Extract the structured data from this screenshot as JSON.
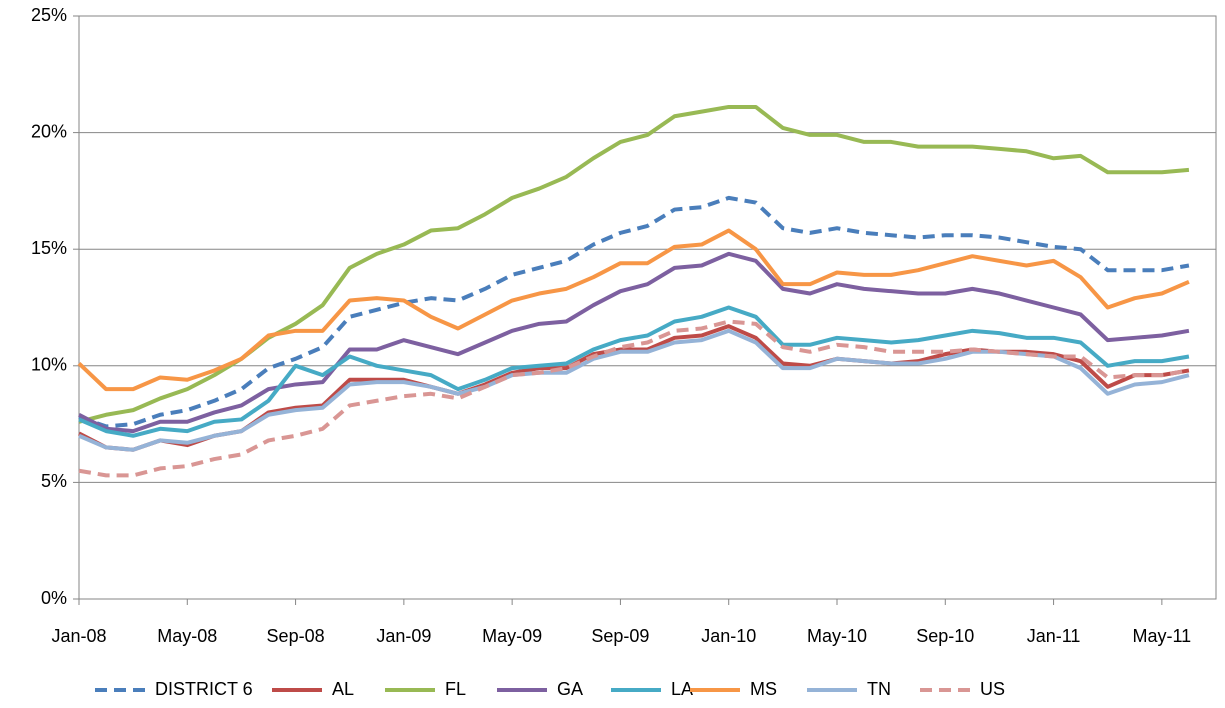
{
  "chart_data": {
    "type": "line",
    "categories": [
      "Jan-08",
      null,
      null,
      null,
      "May-08",
      null,
      null,
      null,
      "Sep-08",
      null,
      null,
      null,
      "Jan-09",
      null,
      null,
      null,
      "May-09",
      null,
      null,
      null,
      "Sep-09",
      null,
      null,
      null,
      "Jan-10",
      null,
      null,
      null,
      "May-10",
      null,
      null,
      null,
      "Sep-10",
      null,
      null,
      null,
      "Jan-11",
      null,
      null,
      null,
      "May-11",
      null
    ],
    "ylim": [
      0,
      25
    ],
    "yticks": [
      {
        "value": 0,
        "label": "0%"
      },
      {
        "value": 5,
        "label": "5%"
      },
      {
        "value": 10,
        "label": "10%"
      },
      {
        "value": 15,
        "label": "15%"
      },
      {
        "value": 20,
        "label": "20%"
      },
      {
        "value": 25,
        "label": "25%"
      }
    ],
    "grid": true,
    "legend": "bottom",
    "series": [
      {
        "name": "DISTRICT 6",
        "color": "#4a7ebb",
        "dashed": true,
        "values": [
          7.8,
          7.4,
          7.5,
          7.9,
          8.1,
          8.5,
          9.0,
          9.9,
          10.3,
          10.8,
          12.1,
          12.4,
          12.7,
          12.9,
          12.8,
          13.3,
          13.9,
          14.2,
          14.5,
          15.2,
          15.7,
          16.0,
          16.7,
          16.8,
          17.2,
          17.0,
          15.9,
          15.7,
          15.9,
          15.7,
          15.6,
          15.5,
          15.6,
          15.6,
          15.5,
          15.3,
          15.1,
          15.0,
          14.1,
          14.1,
          14.1,
          14.3
        ]
      },
      {
        "name": "AL",
        "color": "#be4b48",
        "dashed": false,
        "values": [
          7.1,
          6.5,
          6.4,
          6.8,
          6.6,
          7.0,
          7.2,
          8.0,
          8.2,
          8.3,
          9.4,
          9.4,
          9.4,
          9.1,
          8.8,
          9.2,
          9.7,
          9.9,
          9.9,
          10.5,
          10.7,
          10.7,
          11.2,
          11.3,
          11.7,
          11.2,
          10.1,
          10.0,
          10.3,
          10.2,
          10.1,
          10.2,
          10.5,
          10.7,
          10.6,
          10.6,
          10.5,
          10.2,
          9.1,
          9.6,
          9.6,
          9.8
        ]
      },
      {
        "name": "FL",
        "color": "#98b954",
        "dashed": false,
        "values": [
          7.6,
          7.9,
          8.1,
          8.6,
          9.0,
          9.6,
          10.3,
          11.2,
          11.8,
          12.6,
          14.2,
          14.8,
          15.2,
          15.8,
          15.9,
          16.5,
          17.2,
          17.6,
          18.1,
          18.9,
          19.6,
          19.9,
          20.7,
          20.9,
          21.1,
          21.1,
          20.2,
          19.9,
          19.9,
          19.6,
          19.6,
          19.4,
          19.4,
          19.4,
          19.3,
          19.2,
          18.9,
          19.0,
          18.3,
          18.3,
          18.3,
          18.4
        ]
      },
      {
        "name": "GA",
        "color": "#7d60a0",
        "dashed": false,
        "values": [
          7.9,
          7.3,
          7.2,
          7.6,
          7.6,
          8.0,
          8.3,
          9.0,
          9.2,
          9.3,
          10.7,
          10.7,
          11.1,
          10.8,
          10.5,
          11.0,
          11.5,
          11.8,
          11.9,
          12.6,
          13.2,
          13.5,
          14.2,
          14.3,
          14.8,
          14.5,
          13.3,
          13.1,
          13.5,
          13.3,
          13.2,
          13.1,
          13.1,
          13.3,
          13.1,
          12.8,
          12.5,
          12.2,
          11.1,
          11.2,
          11.3,
          11.5
        ]
      },
      {
        "name": "LA",
        "color": "#46aac5",
        "dashed": false,
        "values": [
          7.7,
          7.2,
          7.0,
          7.3,
          7.2,
          7.6,
          7.7,
          8.5,
          10.0,
          9.6,
          10.4,
          10.0,
          9.8,
          9.6,
          9.0,
          9.4,
          9.9,
          10.0,
          10.1,
          10.7,
          11.1,
          11.3,
          11.9,
          12.1,
          12.5,
          12.1,
          10.9,
          10.9,
          11.2,
          11.1,
          11.0,
          11.1,
          11.3,
          11.5,
          11.4,
          11.2,
          11.2,
          11.0,
          10.0,
          10.2,
          10.2,
          10.4
        ]
      },
      {
        "name": "MS",
        "color": "#f79646",
        "dashed": false,
        "values": [
          10.1,
          9.0,
          9.0,
          9.5,
          9.4,
          9.8,
          10.3,
          11.3,
          11.5,
          11.5,
          12.8,
          12.9,
          12.8,
          12.1,
          11.6,
          12.2,
          12.8,
          13.1,
          13.3,
          13.8,
          14.4,
          14.4,
          15.1,
          15.2,
          15.8,
          15.0,
          13.5,
          13.5,
          14.0,
          13.9,
          13.9,
          14.1,
          14.4,
          14.7,
          14.5,
          14.3,
          14.5,
          13.8,
          12.5,
          12.9,
          13.1,
          13.6
        ]
      },
      {
        "name": "TN",
        "color": "#95b3d7",
        "dashed": false,
        "values": [
          7.0,
          6.5,
          6.4,
          6.8,
          6.7,
          7.0,
          7.2,
          7.9,
          8.1,
          8.2,
          9.2,
          9.3,
          9.3,
          9.1,
          8.8,
          9.1,
          9.6,
          9.7,
          9.7,
          10.3,
          10.6,
          10.6,
          11.0,
          11.1,
          11.5,
          11.0,
          9.9,
          9.9,
          10.3,
          10.2,
          10.1,
          10.1,
          10.3,
          10.6,
          10.6,
          10.5,
          10.4,
          9.9,
          8.8,
          9.2,
          9.3,
          9.6
        ]
      },
      {
        "name": "US",
        "color": "#d99694",
        "dashed": true,
        "values": [
          5.5,
          5.3,
          5.3,
          5.6,
          5.7,
          6.0,
          6.2,
          6.8,
          7.0,
          7.3,
          8.3,
          8.5,
          8.7,
          8.8,
          8.6,
          9.1,
          9.6,
          9.7,
          9.9,
          10.4,
          10.8,
          11.0,
          11.5,
          11.6,
          11.9,
          11.8,
          10.8,
          10.6,
          10.9,
          10.8,
          10.6,
          10.6,
          10.6,
          10.7,
          10.6,
          10.5,
          10.4,
          10.4,
          9.5,
          9.6,
          9.6,
          9.8
        ]
      }
    ]
  }
}
